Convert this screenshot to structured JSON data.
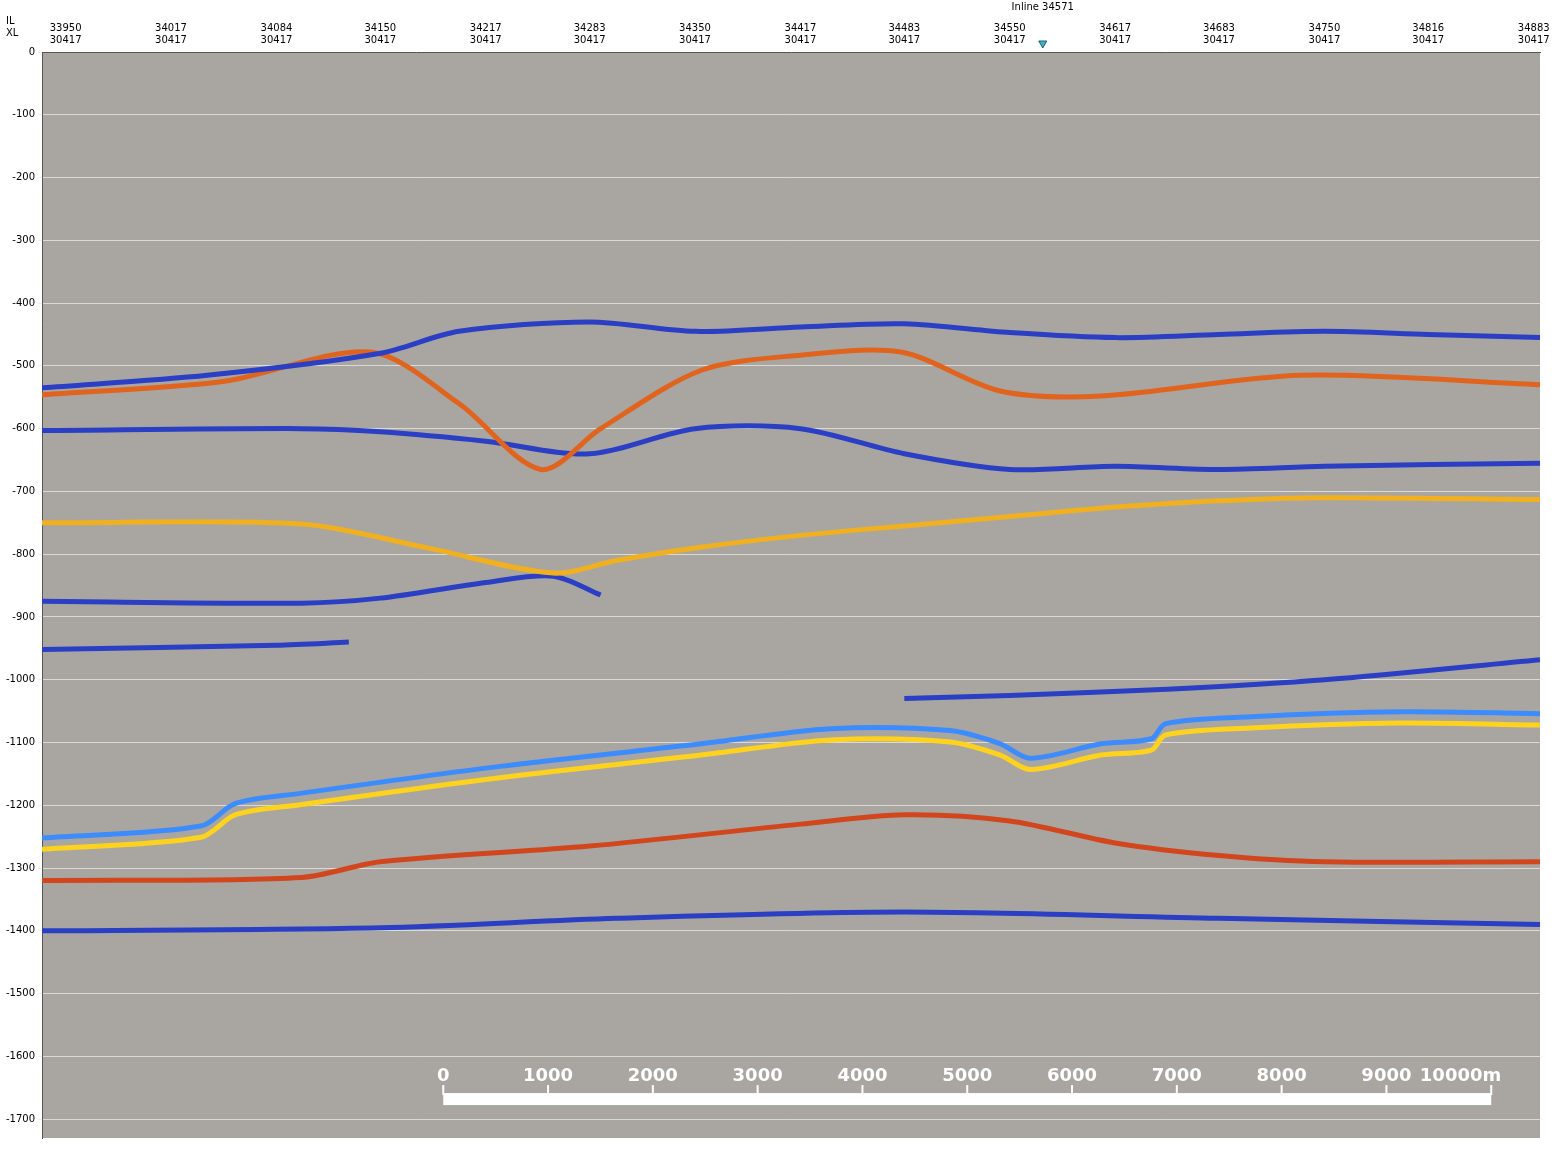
{
  "chart_data": {
    "type": "line",
    "annotations": [
      {
        "x": 34571,
        "label": "Inline 34571"
      }
    ],
    "x_row_labels": [
      "IL",
      "XL"
    ],
    "xlim": [
      33935,
      34887
    ],
    "xticks": [
      {
        "value": 33950,
        "label": [
          "33950",
          "30417"
        ]
      },
      {
        "value": 34017,
        "label": [
          "34017",
          "30417"
        ]
      },
      {
        "value": 34084,
        "label": [
          "34084",
          "30417"
        ]
      },
      {
        "value": 34150,
        "label": [
          "34150",
          "30417"
        ]
      },
      {
        "value": 34217,
        "label": [
          "34217",
          "30417"
        ]
      },
      {
        "value": 34283,
        "label": [
          "34283",
          "30417"
        ]
      },
      {
        "value": 34350,
        "label": [
          "34350",
          "30417"
        ]
      },
      {
        "value": 34417,
        "label": [
          "34417",
          "30417"
        ]
      },
      {
        "value": 34483,
        "label": [
          "34483",
          "30417"
        ]
      },
      {
        "value": 34550,
        "label": [
          "34550",
          "30417"
        ]
      },
      {
        "value": 34617,
        "label": [
          "34617",
          "30417"
        ]
      },
      {
        "value": 34683,
        "label": [
          "34683",
          "30417"
        ]
      },
      {
        "value": 34750,
        "label": [
          "34750",
          "30417"
        ]
      },
      {
        "value": 34816,
        "label": [
          "34816",
          "30417"
        ]
      },
      {
        "value": 34883,
        "label": [
          "34883",
          "30417"
        ]
      }
    ],
    "ylim": [
      -1730,
      0
    ],
    "yticks": [
      0,
      -100,
      -200,
      -300,
      -400,
      -500,
      -600,
      -700,
      -800,
      -900,
      -1000,
      -1100,
      -1200,
      -1300,
      -1400,
      -1500,
      -1600,
      -1700
    ],
    "grid": "y",
    "scale_bar": {
      "x_start": 34190,
      "x_end": 34856,
      "y": -1668,
      "range": [
        0,
        10000
      ],
      "ticks": [
        0,
        1000,
        2000,
        3000,
        4000,
        5000,
        6000,
        7000,
        8000,
        9000,
        {
          "value": 10000,
          "label": "10000m"
        }
      ]
    },
    "series": [
      {
        "color": "#2b3fc4",
        "x": [
          33935,
          34040,
          34150,
          34200,
          34283,
          34350,
          34417,
          34483,
          34550,
          34617,
          34683,
          34750,
          34816,
          34887
        ],
        "values": [
          -535,
          -515,
          -480,
          -445,
          -430,
          -445,
          -438,
          -433,
          -447,
          -455,
          -450,
          -445,
          -450,
          -455
        ]
      },
      {
        "color": "#e0641e",
        "x": [
          33935,
          34050,
          34144,
          34200,
          34252,
          34290,
          34354,
          34417,
          34481,
          34544,
          34608,
          34735,
          34887
        ],
        "values": [
          -546,
          -525,
          -478,
          -560,
          -665,
          -600,
          -507,
          -483,
          -478,
          -540,
          -548,
          -515,
          -530
        ]
      },
      {
        "color": "#2b3fc4",
        "x": [
          33935,
          34100,
          34150,
          34217,
          34283,
          34350,
          34417,
          34483,
          34550,
          34617,
          34683,
          34750,
          34887
        ],
        "values": [
          -603,
          -600,
          -605,
          -620,
          -640,
          -600,
          -600,
          -640,
          -665,
          -660,
          -665,
          -660,
          -655
        ]
      },
      {
        "color": "#f0b020",
        "x": [
          33935,
          34100,
          34180,
          34260,
          34300,
          34350,
          34417,
          34483,
          34550,
          34617,
          34683,
          34750,
          34887
        ],
        "values": [
          -750,
          -752,
          -790,
          -830,
          -810,
          -790,
          -770,
          -755,
          -740,
          -725,
          -715,
          -710,
          -713
        ]
      },
      {
        "color": "#2b3fc4",
        "x": [
          33935,
          34100,
          34150,
          34217,
          34260,
          34290
        ],
        "values": [
          -875,
          -878,
          -870,
          -845,
          -835,
          -865
        ]
      },
      {
        "color": "#2b3fc4",
        "x": [
          33935,
          34084,
          34130
        ],
        "values": [
          -952,
          -945,
          -940
        ]
      },
      {
        "color": "#2b3fc4",
        "x": [
          34483,
          34550,
          34650,
          34750,
          34887
        ],
        "values": [
          -1030,
          -1025,
          -1015,
          -1000,
          -968
        ]
      },
      {
        "color": "#ffd21e",
        "x": [
          33935,
          34036,
          34058,
          34099,
          34226,
          34354,
          34436,
          34512,
          34544,
          34563,
          34608,
          34640,
          34649,
          34703,
          34798,
          34887
        ],
        "values": [
          -1270,
          -1251,
          -1215,
          -1199,
          -1156,
          -1120,
          -1096,
          -1099,
          -1120,
          -1143,
          -1120,
          -1112,
          -1088,
          -1077,
          -1069,
          -1072
        ]
      },
      {
        "color": "#3c8cff",
        "x": [
          33935,
          34036,
          34058,
          34099,
          34226,
          34354,
          34436,
          34512,
          34544,
          34563,
          34608,
          34640,
          34649,
          34703,
          34798,
          34887
        ],
        "values": [
          -1252,
          -1233,
          -1197,
          -1181,
          -1138,
          -1102,
          -1078,
          -1081,
          -1102,
          -1125,
          -1102,
          -1094,
          -1070,
          -1059,
          -1051,
          -1054
        ]
      },
      {
        "color": "#d2461e",
        "x": [
          33935,
          34100,
          34150,
          34283,
          34417,
          34483,
          34550,
          34617,
          34683,
          34750,
          34887
        ],
        "values": [
          -1320,
          -1315,
          -1290,
          -1265,
          -1230,
          -1215,
          -1225,
          -1260,
          -1280,
          -1290,
          -1290
        ]
      },
      {
        "color": "#2b3fc4",
        "x": [
          33935,
          34150,
          34300,
          34483,
          34683,
          34887
        ],
        "values": [
          -1400,
          -1395,
          -1380,
          -1370,
          -1380,
          -1390
        ]
      }
    ]
  }
}
